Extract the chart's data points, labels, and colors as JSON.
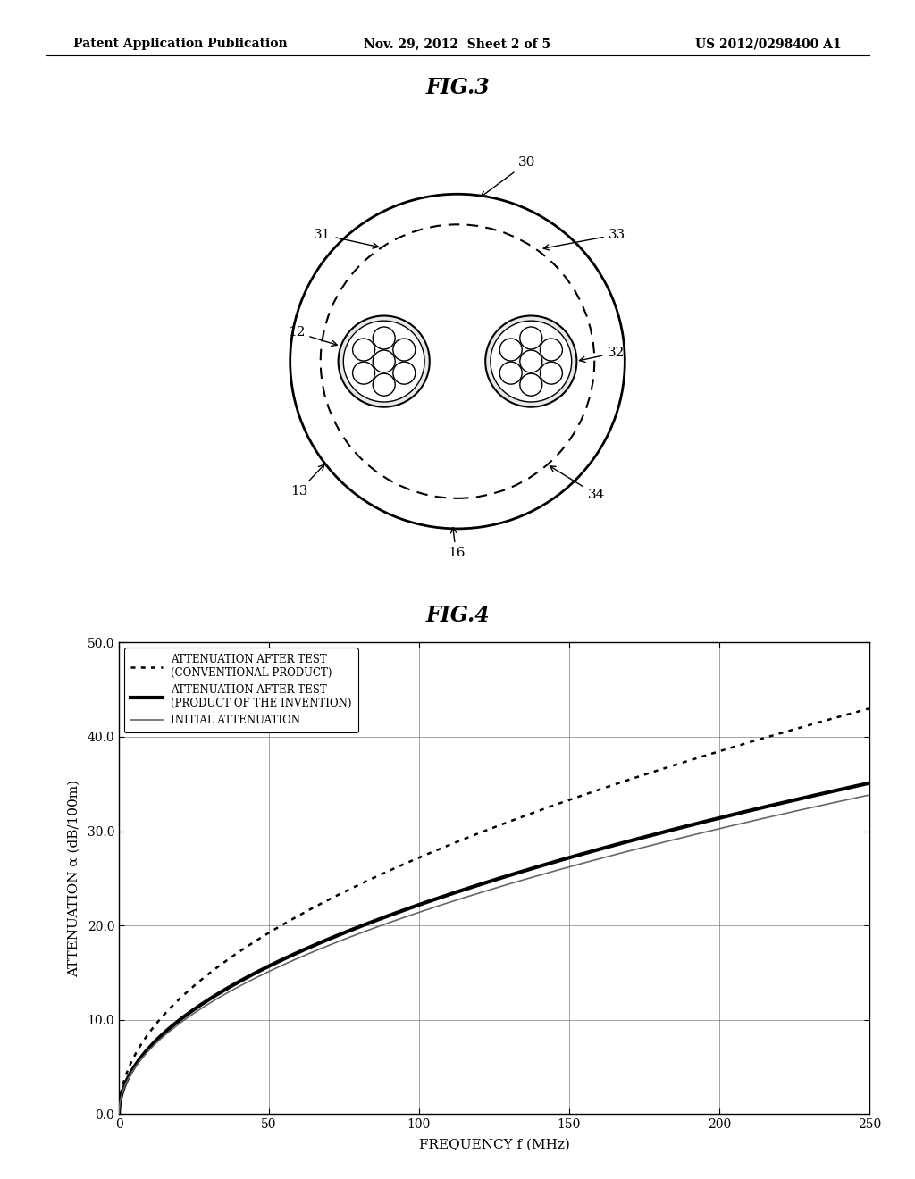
{
  "bg_color": "#ffffff",
  "header_left": "Patent Application Publication",
  "header_center": "Nov. 29, 2012  Sheet 2 of 5",
  "header_right": "US 2012/0298400 A1",
  "fig3_title": "FIG.3",
  "fig4_title": "FIG.4",
  "graph_ylabel": "ATTENUATION α (dB/100m)",
  "graph_xlabel": "FREQUENCY f (MHz)",
  "graph_xlim": [
    0,
    250
  ],
  "graph_ylim": [
    0.0,
    50.0
  ],
  "graph_xticks": [
    0,
    50,
    100,
    150,
    200,
    250
  ],
  "graph_yticks": [
    0.0,
    10.0,
    20.0,
    30.0,
    40.0,
    50.0
  ],
  "graph_ytick_labels": [
    "0.0",
    "10.0",
    "20.0",
    "30.0",
    "40.0",
    "50.0"
  ],
  "k_conv": 2.72,
  "k_inv": 2.22,
  "k_init": 2.14
}
